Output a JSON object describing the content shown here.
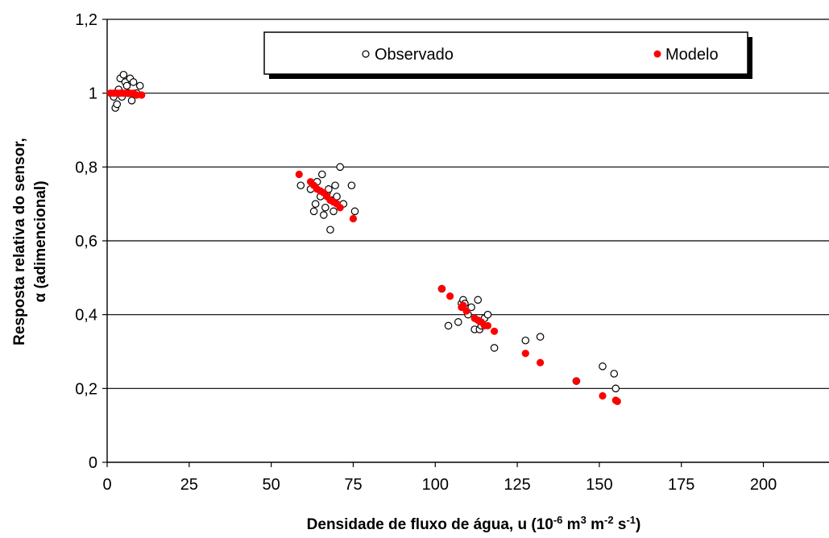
{
  "chart_data": {
    "type": "scatter",
    "xlabel": "Densidade de fluxo de água, u (10",
    "xlabel_parts": {
      "main": "Densidade de fluxo de água, u (10",
      "exp1": "-6",
      "unit1": " m",
      "exp2": "3",
      "unit2": " m",
      "exp3": "-2",
      "unit3": " s",
      "exp4": "-1",
      "close": ")"
    },
    "ylabel_line1": "Resposta relativa do sensor,",
    "ylabel_line2": "α (adimencional)",
    "xlim": [
      0,
      220
    ],
    "ylim": [
      0,
      1.2
    ],
    "x_ticks": [
      0,
      25,
      50,
      75,
      100,
      125,
      150,
      175,
      200
    ],
    "x_tick_labels": [
      "0",
      "25",
      "50",
      "75",
      "100",
      "125",
      "150",
      "175",
      "200"
    ],
    "y_ticks": [
      0,
      0.2,
      0.4,
      0.6,
      0.8,
      1.0,
      1.2
    ],
    "y_tick_labels": [
      "0",
      "0,2",
      "0,4",
      "0,6",
      "0,8",
      "1",
      "1,2"
    ],
    "grid": "horizontal",
    "legend_position": "top",
    "series": [
      {
        "name": "Observado",
        "marker": "open-circle",
        "color": "#000000",
        "points": [
          [
            2,
            0.99
          ],
          [
            2.5,
            0.96
          ],
          [
            3,
            0.97
          ],
          [
            3.5,
            1.01
          ],
          [
            4,
            1.04
          ],
          [
            4.5,
            0.99
          ],
          [
            5,
            1.05
          ],
          [
            5.5,
            1.03
          ],
          [
            6,
            1.02
          ],
          [
            6.5,
            1.0
          ],
          [
            7,
            1.04
          ],
          [
            7.5,
            0.98
          ],
          [
            8,
            1.03
          ],
          [
            9,
            1.0
          ],
          [
            10,
            1.02
          ],
          [
            59,
            0.75
          ],
          [
            62,
            0.74
          ],
          [
            63,
            0.68
          ],
          [
            63.5,
            0.7
          ],
          [
            64,
            0.76
          ],
          [
            65,
            0.72
          ],
          [
            65.5,
            0.78
          ],
          [
            66,
            0.67
          ],
          [
            66.5,
            0.69
          ],
          [
            67,
            0.73
          ],
          [
            67.5,
            0.74
          ],
          [
            68,
            0.63
          ],
          [
            68.5,
            0.71
          ],
          [
            69,
            0.68
          ],
          [
            69.5,
            0.75
          ],
          [
            70,
            0.72
          ],
          [
            71,
            0.8
          ],
          [
            72,
            0.7
          ],
          [
            74.5,
            0.75
          ],
          [
            75.5,
            0.68
          ],
          [
            102,
            0.47
          ],
          [
            104,
            0.37
          ],
          [
            107,
            0.38
          ],
          [
            108,
            0.43
          ],
          [
            108.5,
            0.44
          ],
          [
            109,
            0.43
          ],
          [
            110,
            0.4
          ],
          [
            111,
            0.42
          ],
          [
            112,
            0.36
          ],
          [
            113,
            0.44
          ],
          [
            113.5,
            0.36
          ],
          [
            114,
            0.37
          ],
          [
            115,
            0.39
          ],
          [
            116,
            0.4
          ],
          [
            118,
            0.31
          ],
          [
            127.5,
            0.33
          ],
          [
            132,
            0.34
          ],
          [
            143,
            0.22
          ],
          [
            151,
            0.26
          ],
          [
            154.5,
            0.24
          ],
          [
            155,
            0.2
          ]
        ]
      },
      {
        "name": "Modelo",
        "marker": "filled-circle",
        "color": "#ff0000",
        "points": [
          [
            1,
            1.0
          ],
          [
            2,
            1.0
          ],
          [
            3,
            1.0
          ],
          [
            4,
            1.0
          ],
          [
            5,
            1.0
          ],
          [
            6,
            1.0
          ],
          [
            7,
            1.0
          ],
          [
            8,
            1.0
          ],
          [
            9,
            0.995
          ],
          [
            10.5,
            0.995
          ],
          [
            58.5,
            0.78
          ],
          [
            62,
            0.76
          ],
          [
            63,
            0.75
          ],
          [
            64,
            0.74
          ],
          [
            65,
            0.735
          ],
          [
            66,
            0.73
          ],
          [
            67,
            0.72
          ],
          [
            68,
            0.71
          ],
          [
            69,
            0.705
          ],
          [
            70,
            0.7
          ],
          [
            71,
            0.69
          ],
          [
            75,
            0.66
          ],
          [
            102,
            0.47
          ],
          [
            104.5,
            0.45
          ],
          [
            108,
            0.42
          ],
          [
            108.5,
            0.425
          ],
          [
            109.5,
            0.41
          ],
          [
            112,
            0.39
          ],
          [
            113,
            0.385
          ],
          [
            114,
            0.38
          ],
          [
            115,
            0.37
          ],
          [
            116,
            0.37
          ],
          [
            118,
            0.355
          ],
          [
            127.5,
            0.295
          ],
          [
            132,
            0.27
          ],
          [
            143,
            0.22
          ],
          [
            151,
            0.18
          ],
          [
            155,
            0.168
          ],
          [
            155.5,
            0.165
          ]
        ]
      }
    ]
  }
}
